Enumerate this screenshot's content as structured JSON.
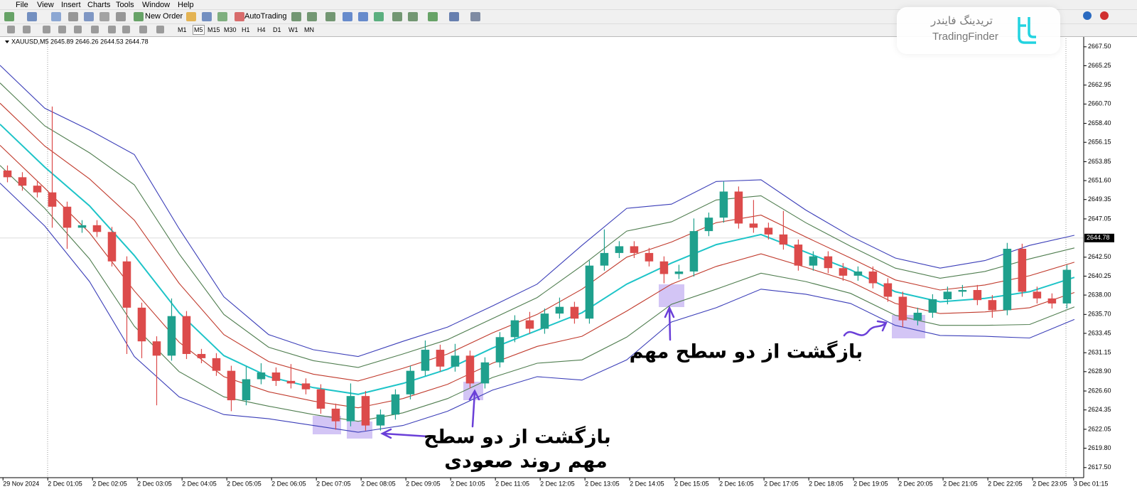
{
  "menu": [
    "File",
    "View",
    "Insert",
    "Charts",
    "Tools",
    "Window",
    "Help"
  ],
  "toolbar": {
    "new_order": "New Order",
    "autotrading": "AutoTrading"
  },
  "timeframes": [
    "M1",
    "M5",
    "M15",
    "M30",
    "H1",
    "H4",
    "D1",
    "W1",
    "MN"
  ],
  "watermark": {
    "persian": "تریدینگ فایندر",
    "latin": "TradingFinder"
  },
  "chart_data": {
    "type": "candlestick",
    "header": "XAUUSD,M5  2645.89 2646.26 2644.53 2644.78",
    "annotations": [
      "بازگشت از دو سطح مهم",
      "بازگشت از دو سطح",
      "مهم روند صعودی"
    ],
    "xlim": [
      0,
      290.5
    ],
    "xticks": [
      {
        "value": 0.8,
        "label": "29 Nov 2024"
      },
      {
        "value": 12.8,
        "label": "2 Dec 01:05"
      },
      {
        "value": 24.8,
        "label": "2 Dec 02:05"
      },
      {
        "value": 36.8,
        "label": "2 Dec 03:05"
      },
      {
        "value": 48.8,
        "label": "2 Dec 04:05"
      },
      {
        "value": 60.8,
        "label": "2 Dec 05:05"
      },
      {
        "value": 72.8,
        "label": "2 Dec 06:05"
      },
      {
        "value": 84.8,
        "label": "2 Dec 07:05"
      },
      {
        "value": 96.8,
        "label": "2 Dec 08:05"
      },
      {
        "value": 108.8,
        "label": "2 Dec 09:05"
      },
      {
        "value": 120.8,
        "label": "2 Dec 10:05"
      },
      {
        "value": 132.8,
        "label": "2 Dec 11:05"
      },
      {
        "value": 144.8,
        "label": "2 Dec 12:05"
      },
      {
        "value": 156.8,
        "label": "2 Dec 13:05"
      },
      {
        "value": 168.8,
        "label": "2 Dec 14:05"
      },
      {
        "value": 180.8,
        "label": "2 Dec 15:05"
      },
      {
        "value": 192.8,
        "label": "2 Dec 16:05"
      },
      {
        "value": 204.8,
        "label": "2 Dec 17:05"
      },
      {
        "value": 216.8,
        "label": "2 Dec 18:05"
      },
      {
        "value": 228.8,
        "label": "2 Dec 19:05"
      },
      {
        "value": 240.8,
        "label": "2 Dec 20:05"
      },
      {
        "value": 252.8,
        "label": "2 Dec 21:05"
      },
      {
        "value": 264.8,
        "label": "2 Dec 22:05"
      },
      {
        "value": 276.8,
        "label": "2 Dec 23:05"
      },
      {
        "value": 287.8,
        "label": "3 Dec 01:15"
      }
    ],
    "ylim": [
      2616.3,
      2668.5
    ],
    "yticks": [
      {
        "value": 2667.5,
        "label": "2667.50"
      },
      2665.25,
      2662.95,
      {
        "value": 2660.7,
        "label": "2660.70"
      },
      {
        "value": 2658.4,
        "label": "2658.40"
      },
      2656.15,
      2653.85,
      {
        "value": 2651.6,
        "label": "2651.60"
      },
      2649.35,
      2647.05,
      {
        "value": 2642.5,
        "label": "2642.50"
      },
      2640.25,
      {
        "value": 2638.0,
        "label": "2638.00"
      },
      {
        "value": 2635.7,
        "label": "2635.70"
      },
      2633.45,
      2631.15,
      {
        "value": 2628.9,
        "label": "2628.90"
      },
      {
        "value": 2626.6,
        "label": "2626.60"
      },
      2624.35,
      2622.05,
      {
        "value": 2619.8,
        "label": "2619.80"
      },
      {
        "value": 2617.5,
        "label": "2617.50"
      }
    ],
    "last_price": 2644.78,
    "up_color": "#1fa08d",
    "down_color": "#dc4b4b",
    "x": [
      2,
      6,
      10,
      14,
      18,
      22,
      26,
      30,
      34,
      38,
      42,
      46,
      50,
      54,
      58,
      62,
      66,
      70,
      74,
      78,
      82,
      86,
      90,
      94,
      98,
      102,
      106,
      110,
      114,
      118,
      122,
      126,
      130,
      134,
      138,
      142,
      146,
      150,
      154,
      158,
      162,
      166,
      170,
      174,
      178,
      182,
      186,
      190,
      194,
      198,
      202,
      206,
      210,
      214,
      218,
      222,
      226,
      230,
      234,
      238,
      242,
      246,
      250,
      254,
      258,
      262,
      266,
      270,
      274,
      278,
      282,
      286
    ],
    "open": [
      2652.8,
      2652.0,
      2651.0,
      2650.2,
      2648.5,
      2646.0,
      2646.3,
      2645.5,
      2642.0,
      2636.5,
      2632.5,
      2630.8,
      2635.5,
      2631.0,
      2630.5,
      2629.0,
      2625.5,
      2628.0,
      2628.8,
      2627.8,
      2627.5,
      2626.8,
      2624.5,
      2623.0,
      2626.0,
      2622.5,
      2623.8,
      2626.2,
      2629.0,
      2631.5,
      2629.5,
      2630.8,
      2627.5,
      2630.0,
      2633.0,
      2635.0,
      2634.0,
      2635.8,
      2636.6,
      2635.2,
      2641.5,
      2643.0,
      2643.8,
      2643.0,
      2642.0,
      2640.5,
      2640.8,
      2645.6,
      2647.2,
      2650.3,
      2646.5,
      2646.0,
      2645.2,
      2644.0,
      2641.5,
      2642.6,
      2641.2,
      2640.3,
      2640.8,
      2639.4,
      2637.8,
      2635.0,
      2635.9,
      2637.5,
      2638.4,
      2638.6,
      2637.4,
      2636.2,
      2643.5,
      2638.4,
      2637.6,
      2637.0
    ],
    "high": [
      2653.4,
      2652.6,
      2651.6,
      2660.4,
      2649.1,
      2646.9,
      2646.9,
      2646.1,
      2642.6,
      2637.1,
      2633.1,
      2637.6,
      2636.1,
      2631.6,
      2631.1,
      2629.6,
      2629.5,
      2629.9,
      2629.4,
      2629.8,
      2628.1,
      2627.4,
      2625.1,
      2627.5,
      2626.6,
      2624.4,
      2626.8,
      2629.6,
      2632.6,
      2632.1,
      2632.2,
      2631.4,
      2630.6,
      2633.6,
      2635.6,
      2636.0,
      2636.4,
      2637.7,
      2637.2,
      2642.1,
      2645.8,
      2644.4,
      2644.4,
      2643.6,
      2642.6,
      2641.6,
      2647.1,
      2647.8,
      2651.5,
      2650.9,
      2649.3,
      2646.6,
      2648.0,
      2644.6,
      2643.2,
      2643.2,
      2641.8,
      2641.4,
      2641.4,
      2640.0,
      2638.4,
      2636.5,
      2638.1,
      2639.0,
      2639.2,
      2639.2,
      2638.0,
      2644.2,
      2644.1,
      2639.0,
      2638.2,
      2641.6
    ],
    "low": [
      2651.4,
      2650.4,
      2649.6,
      2646.0,
      2643.5,
      2645.4,
      2644.9,
      2641.4,
      2631.0,
      2630.5,
      2624.9,
      2630.2,
      2630.4,
      2629.9,
      2628.4,
      2624.2,
      2624.9,
      2627.4,
      2627.2,
      2626.9,
      2626.2,
      2623.9,
      2622.0,
      2622.4,
      2621.9,
      2621.9,
      2623.2,
      2625.6,
      2628.4,
      2628.9,
      2628.9,
      2626.9,
      2626.9,
      2629.4,
      2632.4,
      2633.4,
      2633.4,
      2635.2,
      2634.6,
      2634.6,
      2640.9,
      2642.4,
      2642.4,
      2641.4,
      2639.4,
      2639.9,
      2640.2,
      2645.0,
      2646.6,
      2645.9,
      2645.4,
      2644.6,
      2643.4,
      2640.9,
      2640.9,
      2640.6,
      2639.7,
      2639.7,
      2638.8,
      2637.2,
      2634.2,
      2634.4,
      2635.3,
      2636.9,
      2637.8,
      2636.8,
      2635.3,
      2635.6,
      2637.8,
      2637.0,
      2636.4,
      2636.4
    ],
    "close": [
      2652.0,
      2651.0,
      2650.2,
      2648.5,
      2646.0,
      2646.3,
      2645.5,
      2642.0,
      2636.5,
      2632.5,
      2630.8,
      2635.5,
      2631.0,
      2630.5,
      2629.0,
      2625.5,
      2628.0,
      2628.8,
      2627.8,
      2627.5,
      2626.8,
      2624.5,
      2623.0,
      2626.0,
      2622.5,
      2623.8,
      2626.2,
      2629.0,
      2631.5,
      2629.5,
      2630.8,
      2627.5,
      2630.0,
      2633.0,
      2635.0,
      2634.0,
      2635.8,
      2636.6,
      2635.2,
      2641.5,
      2643.0,
      2643.8,
      2643.0,
      2642.0,
      2640.5,
      2640.8,
      2645.6,
      2647.2,
      2650.3,
      2646.5,
      2646.0,
      2645.2,
      2644.0,
      2641.5,
      2642.6,
      2641.2,
      2640.3,
      2640.8,
      2639.4,
      2637.8,
      2635.0,
      2635.9,
      2637.5,
      2638.4,
      2638.6,
      2637.4,
      2636.2,
      2643.5,
      2638.4,
      2637.6,
      2637.0,
      2641.0
    ],
    "bands": {
      "x": [
        0,
        12,
        24,
        36,
        48,
        60,
        72,
        84,
        96,
        108,
        120,
        132,
        144,
        156,
        168,
        180,
        192,
        204,
        216,
        228,
        240,
        252,
        264,
        276,
        288
      ],
      "series": [
        {
          "color": "#3a3db8",
          "values": [
            2665.3,
            2660.2,
            2657.6,
            2654.7,
            2645.9,
            2637.8,
            2633.3,
            2631.5,
            2630.7,
            2632.5,
            2634.2,
            2636.7,
            2639.3,
            2643.9,
            2648.3,
            2648.8,
            2651.5,
            2651.7,
            2648.1,
            2645.0,
            2642.4,
            2641.2,
            2642.1,
            2643.9,
            2645.1
          ]
        },
        {
          "color": "#4f7d4f",
          "values": [
            2663.2,
            2658.1,
            2654.9,
            2651.1,
            2642.9,
            2635.7,
            2631.8,
            2630.2,
            2629.4,
            2631.0,
            2632.7,
            2635.2,
            2637.7,
            2641.5,
            2645.6,
            2646.7,
            2649.3,
            2649.8,
            2646.6,
            2643.8,
            2641.2,
            2640.0,
            2640.8,
            2642.3,
            2643.6
          ]
        },
        {
          "color": "#c0392b",
          "values": [
            2660.8,
            2655.7,
            2651.8,
            2646.9,
            2639.4,
            2633.3,
            2630.1,
            2628.6,
            2627.8,
            2629.3,
            2631.0,
            2633.5,
            2635.7,
            2638.7,
            2642.5,
            2644.3,
            2646.6,
            2647.5,
            2644.9,
            2642.4,
            2639.8,
            2638.6,
            2639.2,
            2640.3,
            2641.9
          ]
        },
        {
          "color": "#1ec4c8",
          "values": [
            2658.3,
            2653.2,
            2648.6,
            2642.7,
            2635.9,
            2630.8,
            2628.3,
            2627.0,
            2626.2,
            2627.5,
            2629.2,
            2631.7,
            2633.8,
            2635.9,
            2639.3,
            2641.8,
            2644.0,
            2645.2,
            2643.1,
            2641.0,
            2638.4,
            2637.2,
            2637.6,
            2638.4,
            2640.1
          ]
        },
        {
          "color": "#c0392b",
          "values": [
            2655.8,
            2650.7,
            2645.4,
            2638.5,
            2632.4,
            2628.3,
            2626.5,
            2625.4,
            2624.6,
            2625.7,
            2627.4,
            2629.9,
            2631.9,
            2633.1,
            2636.1,
            2639.3,
            2641.4,
            2642.9,
            2641.3,
            2639.6,
            2637.0,
            2635.8,
            2636.0,
            2636.5,
            2638.3
          ]
        },
        {
          "color": "#4f7d4f",
          "values": [
            2653.4,
            2648.3,
            2642.3,
            2634.3,
            2628.9,
            2625.9,
            2624.8,
            2623.8,
            2623.0,
            2624.0,
            2625.7,
            2628.2,
            2629.9,
            2630.3,
            2633.0,
            2636.9,
            2638.7,
            2640.6,
            2639.6,
            2638.2,
            2635.6,
            2634.4,
            2634.4,
            2634.5,
            2636.6
          ]
        },
        {
          "color": "#3a3db8",
          "values": [
            2651.3,
            2646.2,
            2639.6,
            2630.7,
            2625.9,
            2623.8,
            2623.3,
            2622.5,
            2621.7,
            2622.5,
            2624.2,
            2626.7,
            2628.3,
            2627.9,
            2630.3,
            2634.8,
            2636.5,
            2638.7,
            2638.1,
            2637.0,
            2634.4,
            2633.2,
            2633.1,
            2632.9,
            2635.1
          ]
        }
      ]
    }
  }
}
